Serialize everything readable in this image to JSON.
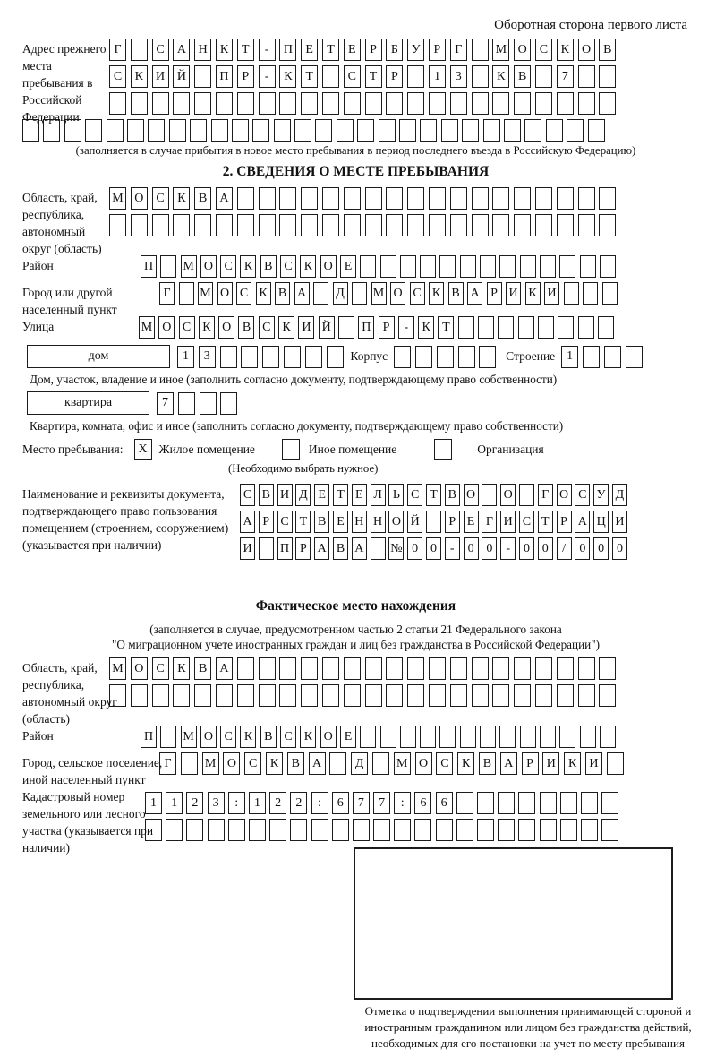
{
  "header_note": "Оборотная сторона первого листа",
  "prev_address": {
    "label": "Адрес прежнего места пребывания в Российской Федерации",
    "rows": [
      "Г САНКТ-ПЕТЕРБУРГ МОСКОВ",
      "СКИЙ ПР-КТ СТР 13 КВ 7  ",
      "                        ",
      "                            "
    ],
    "caption": "(заполняется в случае прибытия в новое место пребывания в период последнего въезда в Российскую Федерацию)"
  },
  "section2": {
    "title": "2. СВЕДЕНИЯ О МЕСТЕ ПРЕБЫВАНИЯ",
    "region": {
      "label": "Область, край, республика, автономный округ (область)",
      "rows": [
        "МОСКВА                  ",
        "                        "
      ]
    },
    "district": {
      "label": "Район",
      "row": "П МОСКВСКОЕ             "
    },
    "city": {
      "label": "Город или другой населенный пункт",
      "row": "Г МОСКВА Д МОСКВАРИКИ   "
    },
    "street": {
      "label": "Улица",
      "row": "МОСКОВСКИЙ ПР-КТ        "
    },
    "house": {
      "box_label": "дом",
      "cells": "13      ",
      "korpus_label": "Корпус",
      "korpus_cells": "     ",
      "stroenie_label": "Строение",
      "stroenie_cells": "1   "
    },
    "house_caption": "Дом, участок, владение и иное (заполнить согласно документу, подтверждающему право собственности)",
    "apartment": {
      "box_label": "квартира",
      "cells": "7   "
    },
    "apartment_caption": "Квартира, комната, офис и иное (заполнить согласно документу, подтверждающему право собственности)",
    "stay_type": {
      "label": "Место пребывания:",
      "options": [
        {
          "label": "Жилое помещение",
          "mark": "X"
        },
        {
          "label": "Иное помещение",
          "mark": ""
        },
        {
          "label": "Организация",
          "mark": ""
        }
      ],
      "caption": "(Необходимо выбрать нужное)"
    },
    "document": {
      "label": "Наименование и реквизиты документа, подтверждающего право пользования помещением (строением, сооружением) (указывается при наличии)",
      "rows": [
        "СВИДЕТЕЛЬСТВО О ГОСУД",
        "АРСТВЕННОЙ РЕГИСТРАЦИ",
        "И ПРАВА №00-00-00/000"
      ]
    }
  },
  "fact": {
    "title": "Фактическое место нахождения",
    "note1": "(заполняется в случае, предусмотренном частью 2 статьи 21 Федерального закона",
    "note2": "\"О миграционном учете иностранных граждан и лиц без гражданства в Российской Федерации\")",
    "region": {
      "label": "Область, край, республика, автономный округ (область)",
      "rows": [
        "МОСКВА                  ",
        "                        "
      ]
    },
    "district": {
      "label": "Район",
      "row": "П МОСКВСКОЕ             "
    },
    "city": {
      "label": "Город, сельское поселение, иной населенный пункт",
      "row": "Г МОСКВА Д МОСКВАРИКИ "
    },
    "cadastre": {
      "label": "Кадастровый номер земельного или лесного участка (указывается при наличии)",
      "rows": [
        "1123:122:677:66        ",
        "                       "
      ]
    }
  },
  "stamp_caption": "Отметка о подтверждении выполнения принимающей стороной и иностранным гражданином или лицом без гражданства действий, необходимых для его постановки на учет по месту пребывания"
}
